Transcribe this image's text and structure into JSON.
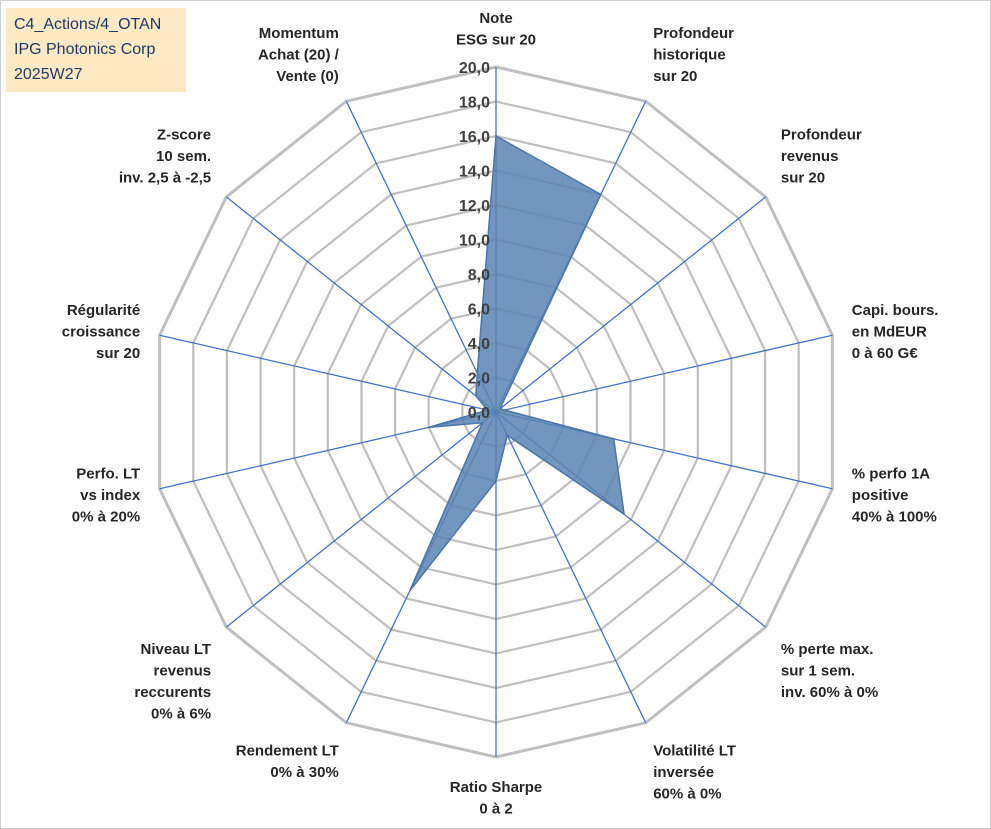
{
  "header": {
    "lines": [
      "C4_Actions/4_OTAN",
      "IPG Photonics Corp",
      "2025W27"
    ]
  },
  "chart_data": {
    "type": "radar",
    "title": "",
    "rlim": [
      0,
      20
    ],
    "ticks": [
      "0,0",
      "2,0",
      "4,0",
      "6,0",
      "8,0",
      "10,0",
      "12,0",
      "14,0",
      "16,0",
      "18,0",
      "20,0"
    ],
    "grid": true,
    "axes": [
      {
        "label": [
          "Note",
          "ESG sur 20"
        ],
        "value": 16.0
      },
      {
        "label": [
          "Profondeur",
          "historique",
          "sur 20"
        ],
        "value": 14.0
      },
      {
        "label": [
          "Profondeur",
          "revenus",
          "sur 20"
        ],
        "value": 0.3
      },
      {
        "label": [
          "Capi. bours.",
          "en MdEUR",
          "0 à 60 G€"
        ],
        "value": 0.5
      },
      {
        "label": [
          "% perfo 1A",
          "positive",
          "40% à 100%"
        ],
        "value": 7.0
      },
      {
        "label": [
          "% perte max.",
          "sur 1 sem.",
          "inv. 60% à 0%"
        ],
        "value": 9.5
      },
      {
        "label": [
          "Volatilité LT",
          "inversée",
          "60% à 0%"
        ],
        "value": 1.5
      },
      {
        "label": [
          "Ratio Sharpe",
          "0 à 2"
        ],
        "value": 4.0
      },
      {
        "label": [
          "Rendement LT",
          "0% à 30%"
        ],
        "value": 11.5
      },
      {
        "label": [
          "Niveau LT",
          "revenus",
          "reccurents",
          "0% à 6%"
        ],
        "value": 1.0
      },
      {
        "label": [
          "Perfo. LT",
          "vs index",
          "0% à 20%"
        ],
        "value": 4.0
      },
      {
        "label": [
          "Régularité",
          "croissance",
          "sur 20"
        ],
        "value": 0.5
      },
      {
        "label": [
          "Z-score",
          "10 sem.",
          "inv. 2,5 à -2,5"
        ],
        "value": 1.5
      },
      {
        "label": [
          "Momentum",
          "Achat (20) /",
          "Vente (0)"
        ],
        "value": 2.5
      }
    ],
    "colors": {
      "grid": "#bfbfbf",
      "spoke": "#4472c4",
      "fill": "#5b84b3",
      "stroke": "#4a75a8",
      "text": "#262626"
    }
  }
}
